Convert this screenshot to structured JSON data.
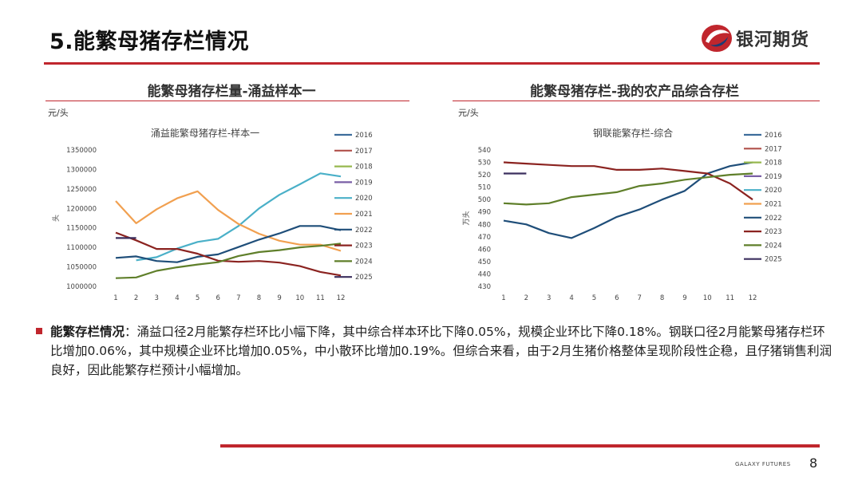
{
  "page": {
    "title": "5.能繁母猪存栏情况",
    "brand": "银河期货",
    "footer_brand": "GALAXY FUTURES",
    "page_number": "8"
  },
  "left_panel": {
    "heading": "能繁母猪存栏量-涌益样本一",
    "unit": "元/头"
  },
  "right_panel": {
    "heading": "能繁母猪存栏-我的农产品综合存栏",
    "unit": "元/头"
  },
  "body": {
    "label": "能繁存栏情况",
    "text": "：涌益口径2月能繁存栏环比小幅下降，其中综合样本环比下降0.05%，规模企业环比下降0.18%。钢联口径2月能繁母猪存栏环比增加0.06%，其中规模企业环比增加0.05%，中小散环比增加0.19%。但综合来看，由于2月生猪价格整体呈现阶段性企稳，且仔猪销售利润良好，因此能繁存栏预计小幅增加。"
  },
  "colors": {
    "accent": "#c0262d",
    "2016": "#3d6d9b",
    "2017": "#b0504a",
    "2018": "#97b84f",
    "2019": "#7a5fa6",
    "2020": "#4ab0c8",
    "2021": "#f1a050",
    "2022": "#1f4e79",
    "2023": "#8b2320",
    "2024": "#5f7f2a",
    "2025": "#3b2f5e"
  },
  "chart_data": [
    {
      "type": "line",
      "title": "涌益能繁母猪存栏-样本一",
      "ylabel": "头",
      "xlabel": "",
      "x": [
        1,
        2,
        3,
        4,
        5,
        6,
        7,
        8,
        9,
        10,
        11,
        12
      ],
      "yticks": [
        "1000000",
        "1050000",
        "1100000",
        "1150000",
        "1200000",
        "1250000",
        "1300000",
        "1350000"
      ],
      "ylim": [
        1000000,
        1350000
      ],
      "legend": "right",
      "series": [
        {
          "name": "2016",
          "values": [
            null,
            null,
            null,
            null,
            null,
            null,
            null,
            null,
            null,
            null,
            null,
            null
          ]
        },
        {
          "name": "2017",
          "values": [
            null,
            null,
            null,
            null,
            null,
            null,
            null,
            null,
            null,
            null,
            null,
            null
          ]
        },
        {
          "name": "2018",
          "values": [
            null,
            null,
            null,
            null,
            null,
            null,
            null,
            null,
            null,
            null,
            null,
            null
          ]
        },
        {
          "name": "2019",
          "values": [
            null,
            null,
            null,
            null,
            null,
            null,
            null,
            null,
            null,
            null,
            null,
            null
          ]
        },
        {
          "name": "2020",
          "values": [
            null,
            1067000,
            1075000,
            1097000,
            1114000,
            1122000,
            1155000,
            1200000,
            1235000,
            1262000,
            1290000,
            1282000
          ]
        },
        {
          "name": "2021",
          "values": [
            1219000,
            1162000,
            1198000,
            1226000,
            1244000,
            1196000,
            1160000,
            1135000,
            1117000,
            1107000,
            1107000,
            1091000
          ]
        },
        {
          "name": "2022",
          "values": [
            1073000,
            1077000,
            1065000,
            1062000,
            1076000,
            1082000,
            1101000,
            1120000,
            1136000,
            1155000,
            1155000,
            1144000
          ]
        },
        {
          "name": "2023",
          "values": [
            1138000,
            1118000,
            1096000,
            1096000,
            1084000,
            1066000,
            1063000,
            1065000,
            1061000,
            1052000,
            1037000,
            1028000
          ]
        },
        {
          "name": "2024",
          "values": [
            1021000,
            1023000,
            1040000,
            1049000,
            1056000,
            1062000,
            1078000,
            1088000,
            1093000,
            1100000,
            1104000,
            1110000
          ]
        },
        {
          "name": "2025",
          "values": [
            1124000,
            1124000,
            null,
            null,
            null,
            null,
            null,
            null,
            null,
            null,
            null,
            null
          ]
        }
      ]
    },
    {
      "type": "line",
      "title": "钢联能繁存栏-综合",
      "ylabel": "万头",
      "xlabel": "",
      "x": [
        1,
        2,
        3,
        4,
        5,
        6,
        7,
        8,
        9,
        10,
        11,
        12
      ],
      "yticks": [
        "430",
        "440",
        "450",
        "460",
        "470",
        "480",
        "490",
        "500",
        "510",
        "520",
        "530",
        "540"
      ],
      "ylim": [
        430,
        540
      ],
      "legend": "right",
      "series": [
        {
          "name": "2016",
          "values": [
            null,
            null,
            null,
            null,
            null,
            null,
            null,
            null,
            null,
            null,
            null,
            null
          ]
        },
        {
          "name": "2017",
          "values": [
            null,
            null,
            null,
            null,
            null,
            null,
            null,
            null,
            null,
            null,
            null,
            null
          ]
        },
        {
          "name": "2018",
          "values": [
            null,
            null,
            null,
            null,
            null,
            null,
            null,
            null,
            null,
            null,
            null,
            null
          ]
        },
        {
          "name": "2019",
          "values": [
            null,
            null,
            null,
            null,
            null,
            null,
            null,
            null,
            null,
            null,
            null,
            null
          ]
        },
        {
          "name": "2020",
          "values": [
            null,
            null,
            null,
            null,
            null,
            null,
            null,
            null,
            null,
            null,
            null,
            null
          ]
        },
        {
          "name": "2021",
          "values": [
            null,
            null,
            null,
            null,
            null,
            null,
            null,
            null,
            null,
            null,
            null,
            null
          ]
        },
        {
          "name": "2022",
          "values": [
            483,
            480,
            473,
            469,
            477,
            486,
            492,
            500,
            507,
            521,
            527,
            530
          ]
        },
        {
          "name": "2023",
          "values": [
            530,
            529,
            528,
            527,
            527,
            524,
            524,
            525,
            523,
            521,
            513,
            500
          ]
        },
        {
          "name": "2024",
          "values": [
            497,
            496,
            497,
            502,
            504,
            506,
            511,
            513,
            516,
            518,
            520,
            521
          ]
        },
        {
          "name": "2025",
          "values": [
            521,
            521,
            null,
            null,
            null,
            null,
            null,
            null,
            null,
            null,
            null,
            null
          ]
        }
      ]
    }
  ]
}
